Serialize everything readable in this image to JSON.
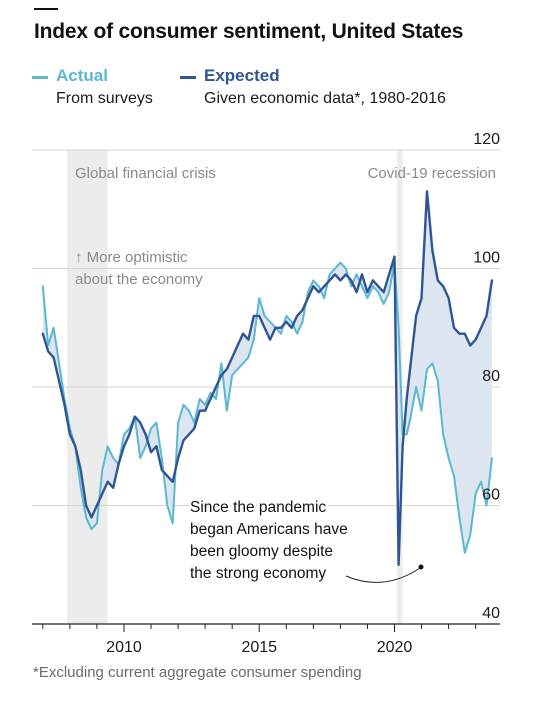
{
  "title": "Index of consumer sentiment, United States",
  "legend": [
    {
      "name": "Actual",
      "desc": "From surveys",
      "color": "#5bb8d0"
    },
    {
      "name": "Expected",
      "desc": "Given economic data*, 1980-2016",
      "color": "#2f5596"
    }
  ],
  "footnote": "*Excluding current aggregate consumer spending",
  "annotations": {
    "gfc": "Global financial crisis",
    "covid": "Covid-19 recession",
    "optimistic_line1": "↑ More optimistic",
    "optimistic_line2": "about the economy",
    "pandemic_lines": [
      "Since the pandemic",
      "began Americans have",
      "been gloomy despite",
      "the strong economy"
    ]
  },
  "chart_data": {
    "type": "line",
    "title": "Index of consumer sentiment, United States",
    "xlabel": "",
    "ylabel": "",
    "xlim": [
      2006.6,
      2023.9
    ],
    "ylim": [
      40,
      120
    ],
    "y_ticks": [
      40,
      60,
      80,
      100,
      120
    ],
    "x_ticks": [
      2010,
      2015,
      2020
    ],
    "grid": true,
    "y_axis_side": "right",
    "legend_position": "top-left",
    "shaded_periods": [
      {
        "label": "Global financial crisis",
        "start": 2007.9,
        "end": 2009.4
      },
      {
        "label": "Covid-19 recession",
        "start": 2020.1,
        "end": 2020.3
      }
    ],
    "gap_fill_color": "#dde6f0",
    "series": [
      {
        "name": "Actual",
        "color": "#5bb8d0",
        "x": [
          2007.0,
          2007.2,
          2007.4,
          2007.6,
          2007.8,
          2008.0,
          2008.2,
          2008.4,
          2008.6,
          2008.8,
          2009.0,
          2009.2,
          2009.4,
          2009.6,
          2009.8,
          2010.0,
          2010.2,
          2010.4,
          2010.6,
          2010.8,
          2011.0,
          2011.2,
          2011.4,
          2011.6,
          2011.8,
          2012.0,
          2012.2,
          2012.4,
          2012.6,
          2012.8,
          2013.0,
          2013.2,
          2013.4,
          2013.6,
          2013.8,
          2014.0,
          2014.2,
          2014.4,
          2014.6,
          2014.8,
          2015.0,
          2015.2,
          2015.4,
          2015.6,
          2015.8,
          2016.0,
          2016.2,
          2016.4,
          2016.6,
          2016.8,
          2017.0,
          2017.2,
          2017.4,
          2017.6,
          2017.8,
          2018.0,
          2018.2,
          2018.4,
          2018.6,
          2018.8,
          2019.0,
          2019.2,
          2019.4,
          2019.6,
          2019.8,
          2020.0,
          2020.15,
          2020.3,
          2020.45,
          2020.6,
          2020.8,
          2021.0,
          2021.2,
          2021.4,
          2021.6,
          2021.8,
          2022.0,
          2022.2,
          2022.4,
          2022.6,
          2022.8,
          2023.0,
          2023.2,
          2023.4,
          2023.6
        ],
        "y": [
          97,
          87,
          90,
          84,
          78,
          73,
          70,
          63,
          58,
          56,
          57,
          66,
          70,
          68,
          67,
          72,
          73,
          75,
          68,
          70,
          73,
          74,
          68,
          60,
          57,
          74,
          77,
          76,
          74,
          78,
          77,
          79,
          78,
          84,
          76,
          82,
          83,
          84,
          85,
          88,
          95,
          92,
          91,
          90,
          89,
          92,
          91,
          89,
          91,
          96,
          98,
          97,
          95,
          99,
          100,
          101,
          100,
          97,
          99,
          97,
          95,
          97,
          96,
          94,
          96,
          101,
          90,
          72,
          72,
          75,
          80,
          76,
          83,
          84,
          81,
          72,
          68,
          65,
          58,
          52,
          55,
          62,
          64,
          60,
          68
        ]
      },
      {
        "name": "Expected",
        "color": "#2f5596",
        "x": [
          2007.0,
          2007.2,
          2007.4,
          2007.6,
          2007.8,
          2008.0,
          2008.2,
          2008.4,
          2008.6,
          2008.8,
          2009.0,
          2009.2,
          2009.4,
          2009.6,
          2009.8,
          2010.0,
          2010.2,
          2010.4,
          2010.6,
          2010.8,
          2011.0,
          2011.2,
          2011.4,
          2011.6,
          2011.8,
          2012.0,
          2012.2,
          2012.4,
          2012.6,
          2012.8,
          2013.0,
          2013.2,
          2013.4,
          2013.6,
          2013.8,
          2014.0,
          2014.2,
          2014.4,
          2014.6,
          2014.8,
          2015.0,
          2015.2,
          2015.4,
          2015.6,
          2015.8,
          2016.0,
          2016.2,
          2016.4,
          2016.6,
          2016.8,
          2017.0,
          2017.2,
          2017.4,
          2017.6,
          2017.8,
          2018.0,
          2018.2,
          2018.4,
          2018.6,
          2018.8,
          2019.0,
          2019.2,
          2019.4,
          2019.6,
          2019.8,
          2020.0,
          2020.15,
          2020.3,
          2020.45,
          2020.6,
          2020.8,
          2021.0,
          2021.2,
          2021.4,
          2021.6,
          2021.8,
          2022.0,
          2022.2,
          2022.4,
          2022.6,
          2022.8,
          2023.0,
          2023.2,
          2023.4,
          2023.6
        ],
        "y": [
          89,
          86,
          85,
          81,
          77,
          72,
          70,
          66,
          60,
          58,
          60,
          62,
          64,
          63,
          67,
          70,
          72,
          75,
          74,
          72,
          69,
          70,
          66,
          65,
          64,
          68,
          71,
          72,
          73,
          76,
          76,
          78,
          80,
          82,
          83,
          85,
          87,
          89,
          88,
          92,
          92,
          90,
          88,
          90,
          90,
          91,
          90,
          92,
          93,
          95,
          97,
          96,
          97,
          98,
          99,
          98,
          99,
          98,
          96,
          99,
          96,
          98,
          97,
          96,
          99,
          102,
          50,
          70,
          78,
          84,
          92,
          95,
          113,
          103,
          98,
          97,
          95,
          90,
          89,
          89,
          87,
          88,
          90,
          92,
          98
        ]
      }
    ]
  }
}
